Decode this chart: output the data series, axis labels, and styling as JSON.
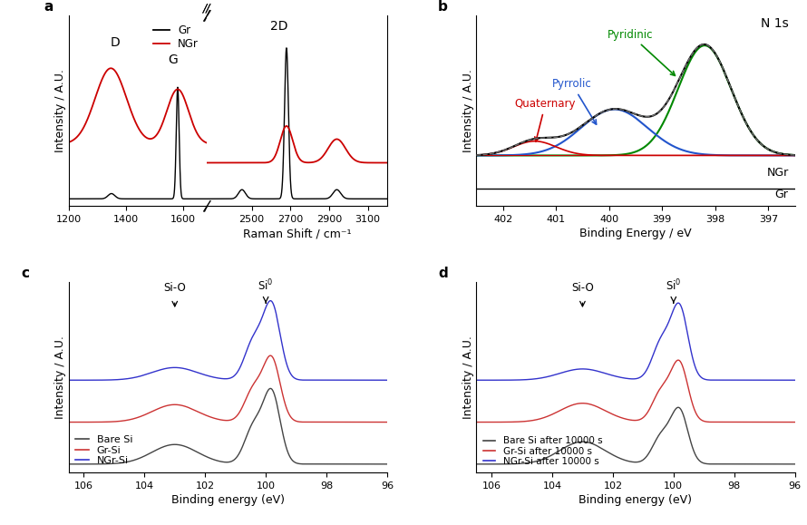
{
  "fig_bg": "#ffffff",
  "panel_a": {
    "xlabel": "Raman Shift / cm⁻¹",
    "ylabel": "Intensity / A.U.",
    "label": "a",
    "legend": [
      "Gr",
      "NGr"
    ],
    "legend_colors": [
      "#000000",
      "#cc0000"
    ]
  },
  "panel_b": {
    "xlabel": "Binding Energy / eV",
    "ylabel": "Intensity / A.U.",
    "label": "b",
    "title": "N 1s",
    "xlim": [
      402.5,
      396.5
    ],
    "labels": [
      "Pyridinic",
      "Pyrrolic",
      "Quaternary"
    ],
    "label_colors": [
      "#008800",
      "#0055cc",
      "#cc0000"
    ],
    "NGr_label": "NGr",
    "Gr_label": "Gr"
  },
  "panel_c": {
    "xlabel": "Binding energy (eV)",
    "ylabel": "Intensity / A.U.",
    "label": "c",
    "legend": [
      "Bare Si",
      "Gr-Si",
      "NGr-Si"
    ],
    "legend_colors": [
      "#555555",
      "#cc4444",
      "#4444cc"
    ]
  },
  "panel_d": {
    "xlabel": "Binding energy (eV)",
    "ylabel": "Intensity / A.U.",
    "label": "d",
    "legend": [
      "Bare Si after 10000 s",
      "Gr-Si after 10000 s",
      "NGr-Si after 10000 s"
    ],
    "legend_colors": [
      "#333333",
      "#cc3333",
      "#3333cc"
    ]
  }
}
